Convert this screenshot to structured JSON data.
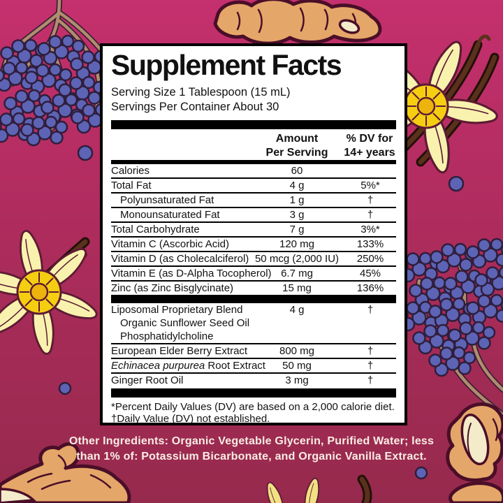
{
  "panel": {
    "title": "Supplement Facts",
    "serving_size": "Serving Size 1 Tablespoon (15 mL)",
    "servings_per_container": "Servings Per Container About 30",
    "col_amount_line1": "Amount",
    "col_amount_line2": "Per Serving",
    "col_dv_line1": "% DV for",
    "col_dv_line2": "14+ years",
    "main_rows": [
      {
        "label": "Calories",
        "amount": "60",
        "dv": ""
      },
      {
        "label": "Total Fat",
        "amount": "4 g",
        "dv": "5%*",
        "divider": true
      },
      {
        "label": "Polyunsaturated Fat",
        "amount": "1 g",
        "dv": "†",
        "indent": true,
        "divider": true
      },
      {
        "label": "Monounsaturated Fat",
        "amount": "3 g",
        "dv": "†",
        "indent": true,
        "divider": true
      },
      {
        "label": "Total Carbohydrate",
        "amount": "7 g",
        "dv": "3%*",
        "divider": true
      },
      {
        "label": "Vitamin C (Ascorbic Acid)",
        "amount": "120 mg",
        "dv": "133%",
        "divider": true
      },
      {
        "label": "Vitamin D (as Cholecalciferol)",
        "amount": "50 mcg (2,000 IU)",
        "dv": "250%",
        "divider": true
      },
      {
        "label": "Vitamin E (as D-Alpha Tocopherol)",
        "amount": "6.7 mg",
        "dv": "45%",
        "divider": true
      },
      {
        "label": "Zinc (as Zinc Bisglycinate)",
        "amount": "15 mg",
        "dv": "136%",
        "divider": true
      }
    ],
    "blend_rows": [
      {
        "label": "Liposomal Proprietary Blend",
        "amount": "4 g",
        "dv": "†"
      },
      {
        "label": "Organic Sunflower Seed Oil",
        "indent": true
      },
      {
        "label": "Phosphatidylcholine",
        "indent": true
      },
      {
        "label": "European Elder Berry Extract",
        "amount": "800 mg",
        "dv": "†",
        "divider": true
      },
      {
        "label_italic": "Echinacea purpurea",
        "label": " Root Extract",
        "amount": "50 mg",
        "dv": "†",
        "divider": true
      },
      {
        "label": "Ginger Root Oil",
        "amount": "3 mg",
        "dv": "†",
        "divider": true
      }
    ],
    "footnotes": [
      "*Percent Daily Values (DV) are based on a 2,000 calorie diet.",
      "†Daily Value (DV) not established."
    ]
  },
  "other_ingredients_lines": [
    "Other Ingredients: Organic Vegetable Glycerin, Purified Water; less",
    "than 1% of: Potassium Bicarbonate, and Organic Vanilla Extract."
  ],
  "illustrations": {
    "top_left": "elderberry-branch-cluster",
    "top_center": "ginger-root",
    "top_right": "vanilla-flower-with-pods",
    "middle_left": "vanilla-flower-with-pods",
    "middle_right": "elderberry-branch-cluster",
    "bottom_left": "ginger-root",
    "bottom_center": "vanilla-leaves-and-pod",
    "bottom_right": "cut-ginger-root-pieces"
  },
  "colors": {
    "background_top": "#C5306E",
    "background_bottom": "#962A4D",
    "berry": "#5D64B6",
    "branch": "#B18C6E",
    "petal": "#F8F2AE",
    "flower_center": "#F5CE12",
    "ginger": "#E5A669",
    "ginger_cut": "#F3EBC9",
    "pod_brown": "#5A311D",
    "panel_bg": "#FFFFFF",
    "panel_border": "#000000",
    "text_dark": "#111111",
    "other_ingredients_text": "#FAEDE4"
  }
}
